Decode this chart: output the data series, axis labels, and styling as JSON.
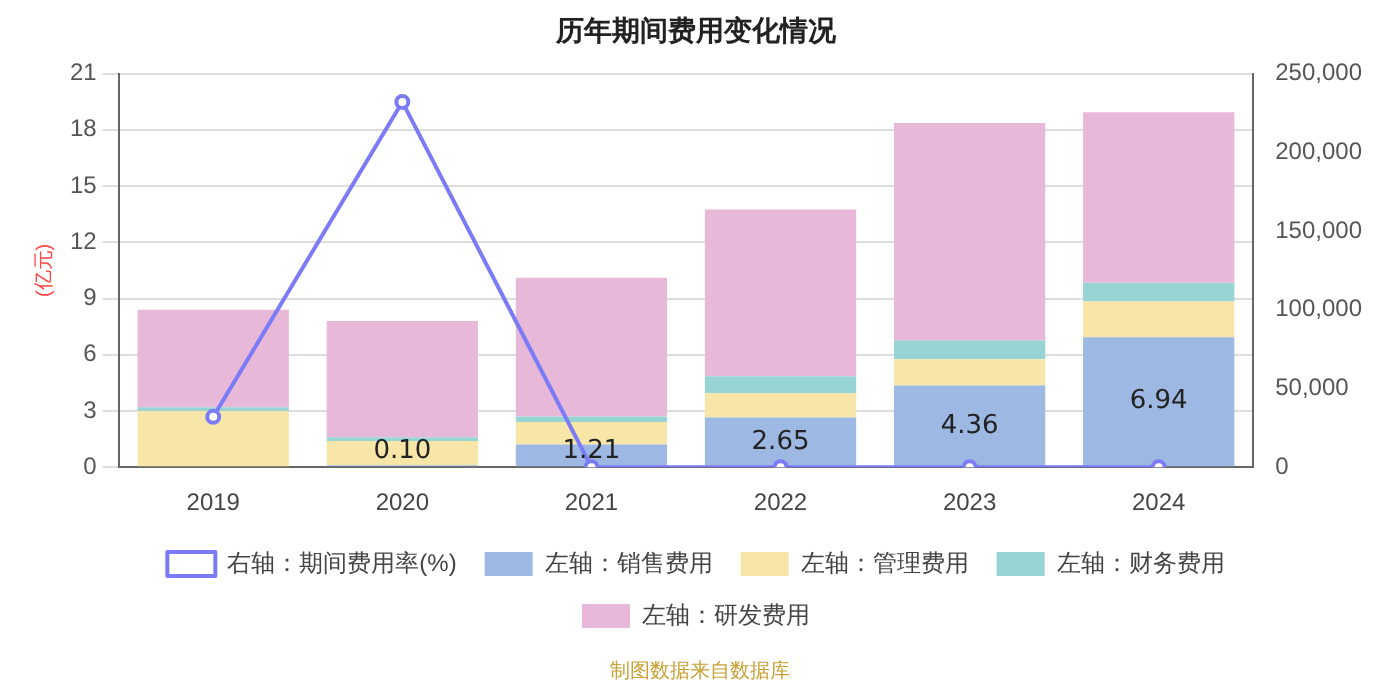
{
  "chart_data": {
    "type": "bar",
    "title": "历年期间费用变化情况",
    "ylabel": "(亿元)",
    "categories": [
      "2019",
      "2020",
      "2021",
      "2022",
      "2023",
      "2024"
    ],
    "stacked": true,
    "series": [
      {
        "name": "左轴：销售费用",
        "color": "#9db8e2",
        "values": [
          null,
          0.1,
          1.21,
          2.65,
          4.36,
          6.94
        ],
        "value_labels": [
          null,
          "0.10",
          "1.21",
          "2.65",
          "4.36",
          "6.94"
        ]
      },
      {
        "name": "左轴：管理费用",
        "color": "#f8e6a8",
        "values": [
          3,
          1.3,
          1.2,
          1.3,
          1.4,
          1.9
        ]
      },
      {
        "name": "左轴：财务费用",
        "color": "#98d4d4",
        "values": [
          0.2,
          0.2,
          0.3,
          0.9,
          1,
          1
        ]
      },
      {
        "name": "左轴：研发费用",
        "color": "#e7b8d8",
        "values": [
          5.2,
          6.2,
          7.4,
          8.9,
          11.6,
          9.1
        ]
      },
      {
        "name": "右轴：期间费用率(%)",
        "type": "line",
        "axis": "y2",
        "color": "#7b7bf5",
        "marker": "circle",
        "values": [
          32000,
          232000,
          0,
          0,
          0,
          0
        ]
      }
    ],
    "ylim": [
      0,
      21
    ],
    "yticks": [
      0,
      3,
      6,
      9,
      12,
      15,
      18,
      21
    ],
    "y2lim": [
      0,
      250000
    ],
    "y2ticks": [
      {
        "value": 0,
        "label": "0"
      },
      {
        "value": 50000,
        "label": "50,000"
      },
      {
        "value": 100000,
        "label": "100,000"
      },
      {
        "value": 150000,
        "label": "150,000"
      },
      {
        "value": 200000,
        "label": "200,000"
      },
      {
        "value": 250000,
        "label": "250,000"
      }
    ],
    "grid": "y",
    "legend": "bottom",
    "annotations": [
      "制图数据来自数据库"
    ]
  }
}
